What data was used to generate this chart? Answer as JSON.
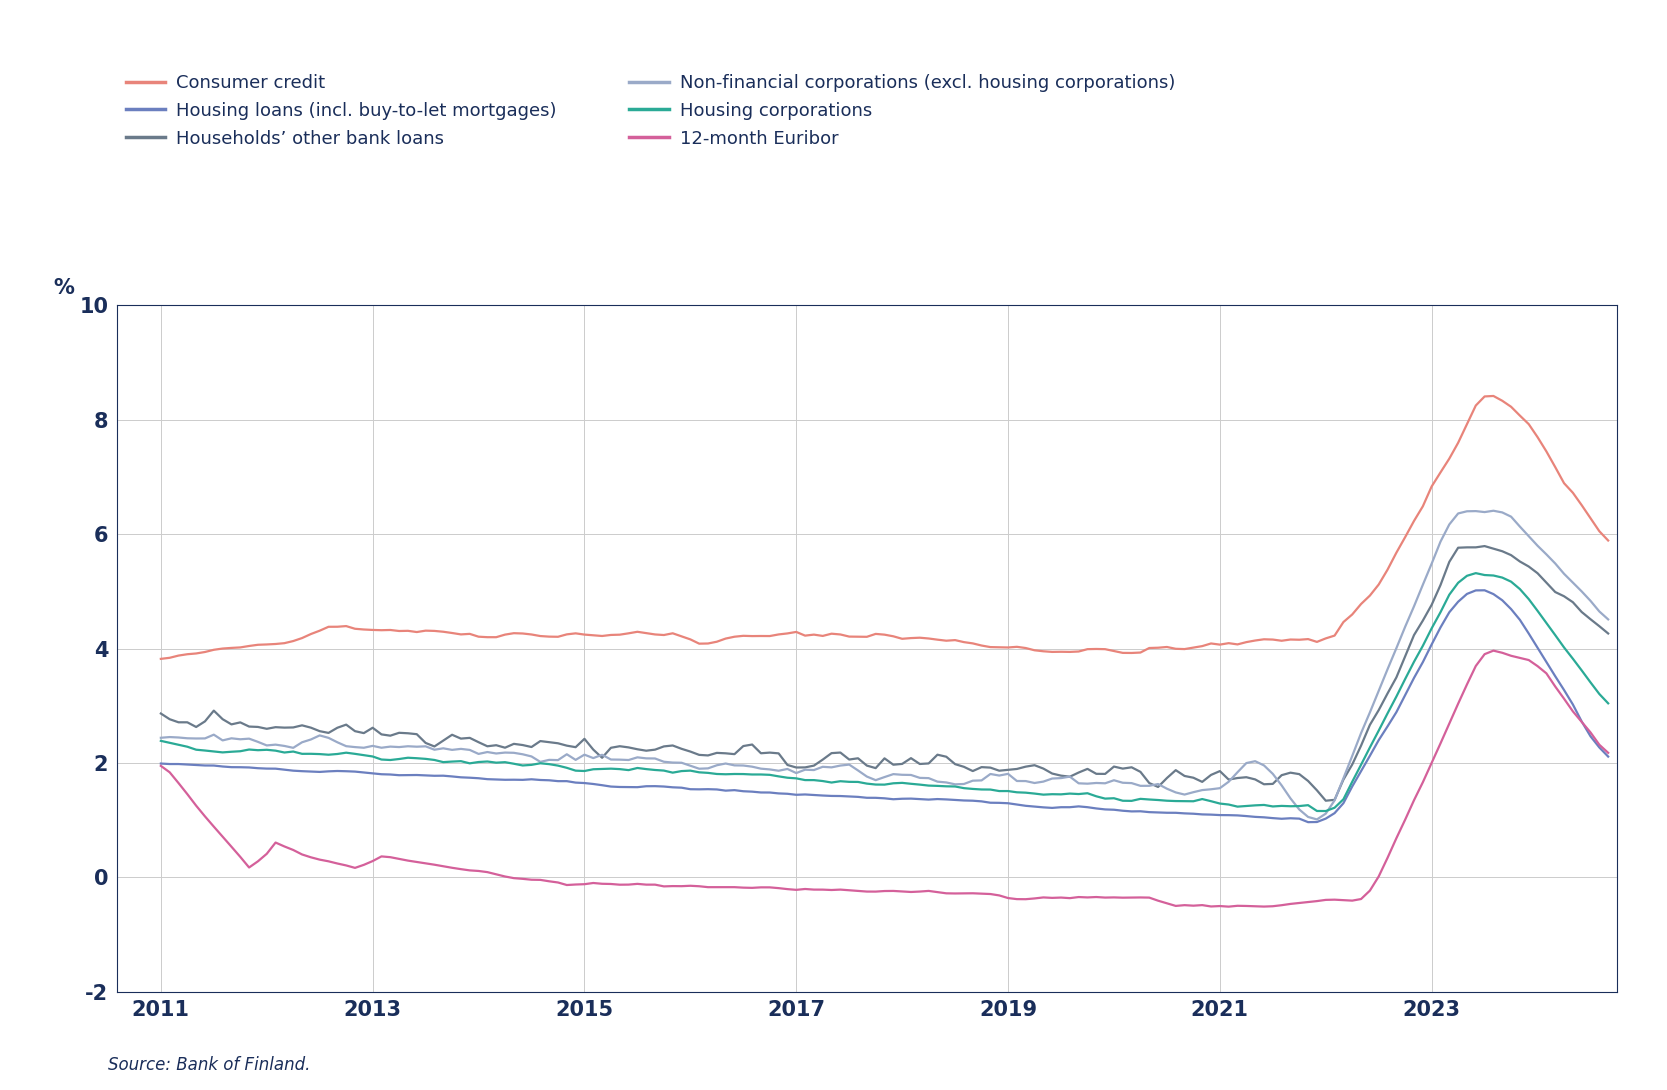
{
  "title": "",
  "ylabel": "%",
  "source": "Source: Bank of Finland.",
  "ylim": [
    -2,
    10
  ],
  "yticks": [
    -2,
    0,
    2,
    4,
    6,
    8,
    10
  ],
  "x_start_year": 2010.583,
  "x_end_year": 2024.75,
  "xtick_years": [
    2011,
    2013,
    2015,
    2017,
    2019,
    2021,
    2023
  ],
  "background_color": "#ffffff",
  "text_color": "#1a2e5a",
  "grid_color": "#cccccc",
  "spine_color": "#1a2e5a",
  "legend": [
    {
      "label": "Consumer credit",
      "color": "#e8847a"
    },
    {
      "label": "Housing loans (incl. buy-to-let mortgages)",
      "color": "#6b7fbf"
    },
    {
      "label": "Households’ other bank loans",
      "color": "#6a7a8a"
    },
    {
      "label": "Non-financial corporations (excl. housing corporations)",
      "color": "#9aaac8"
    },
    {
      "label": "Housing corporations",
      "color": "#2aaa96"
    },
    {
      "label": "12-month Euribor",
      "color": "#d4609a"
    }
  ],
  "series_colors": {
    "consumer_credit": "#e8847a",
    "housing_loans": "#6b7fbf",
    "other_bank_loans": "#6a7a8a",
    "non_financial_corp": "#9aaac8",
    "housing_corp": "#2aaa96",
    "euribor": "#d4609a"
  }
}
